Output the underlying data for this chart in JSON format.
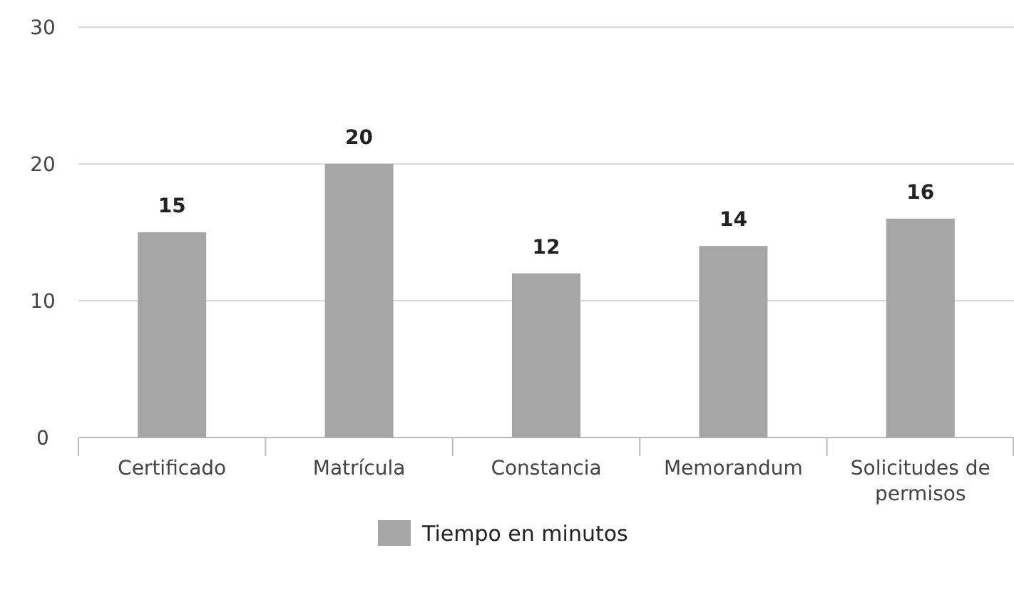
{
  "chart_data": {
    "type": "bar",
    "categories": [
      "Certificado",
      "Matrícula",
      "Constancia",
      "Memorandum",
      "Solicitudes de permisos"
    ],
    "series": [
      {
        "name": "Tiempo en minutos",
        "color": "#a6a6a6",
        "values": [
          15,
          20,
          12,
          14,
          16
        ]
      }
    ],
    "ylim": [
      0,
      30
    ],
    "yticks": [
      0,
      10,
      20,
      30
    ],
    "grid": "y",
    "legend": "bottom",
    "data_labels": true
  }
}
